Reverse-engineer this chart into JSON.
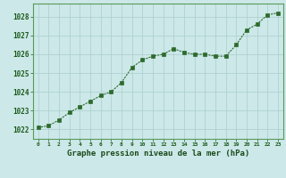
{
  "x": [
    0,
    1,
    2,
    3,
    4,
    5,
    6,
    7,
    8,
    9,
    10,
    11,
    12,
    13,
    14,
    15,
    16,
    17,
    18,
    19,
    20,
    21,
    22,
    23
  ],
  "y": [
    1022.1,
    1022.2,
    1022.5,
    1022.9,
    1023.2,
    1023.5,
    1023.8,
    1024.0,
    1024.5,
    1025.3,
    1025.7,
    1025.9,
    1026.0,
    1026.3,
    1026.1,
    1026.0,
    1026.0,
    1025.9,
    1025.9,
    1026.5,
    1027.3,
    1027.6,
    1028.1,
    1028.2
  ],
  "line_color": "#2d6a2d",
  "marker_color": "#2d6a2d",
  "bg_color": "#cce8e8",
  "grid_color": "#aacece",
  "xlabel": "Graphe pression niveau de la mer (hPa)",
  "xlabel_color": "#1a4a1a",
  "tick_label_color": "#1a5a1a",
  "ylim": [
    1021.5,
    1028.7
  ],
  "yticks": [
    1022,
    1023,
    1024,
    1025,
    1026,
    1027,
    1028
  ],
  "xticks": [
    0,
    1,
    2,
    3,
    4,
    5,
    6,
    7,
    8,
    9,
    10,
    11,
    12,
    13,
    14,
    15,
    16,
    17,
    18,
    19,
    20,
    21,
    22,
    23
  ],
  "border_color": "#5a9a5a"
}
